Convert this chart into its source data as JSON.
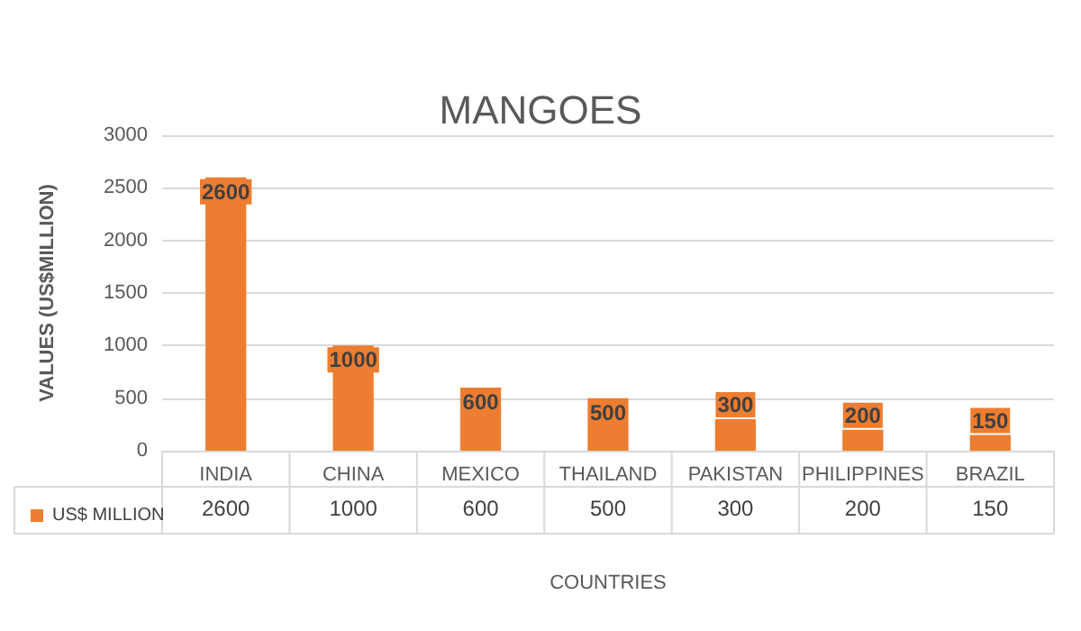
{
  "chart_data": {
    "type": "bar",
    "title": "MANGOES",
    "xlabel": "COUNTRIES",
    "ylabel": "VALUES (US$MILLION)",
    "categories": [
      "INDIA",
      "CHINA",
      "MEXICO",
      "THAILAND",
      "PAKISTAN",
      "PHILIPPINES",
      "BRAZIL"
    ],
    "series": [
      {
        "name": "US$ MILLION",
        "color": "#ed7d31",
        "values": [
          2600,
          1000,
          600,
          500,
          300,
          200,
          150
        ],
        "value_labels": [
          "2600",
          "1000",
          "600",
          "500",
          "300",
          "200",
          "150"
        ]
      }
    ],
    "ylim": [
      0,
      3000
    ],
    "yticks": [
      0,
      500,
      1000,
      1500,
      2000,
      2500,
      3000
    ],
    "grid": "y",
    "legend": "bottom left",
    "annotations": [
      {
        "text": "2600",
        "x": "INDIA"
      },
      {
        "text": "1000",
        "x": "CHINA"
      },
      {
        "text": "600",
        "x": "MEXICO"
      },
      {
        "text": "500",
        "x": "THAILAND"
      },
      {
        "text": "300",
        "x": "PAKISTAN"
      },
      {
        "text": "200",
        "x": "PHILIPPINES"
      },
      {
        "text": "150",
        "x": "BRAZIL"
      }
    ]
  }
}
